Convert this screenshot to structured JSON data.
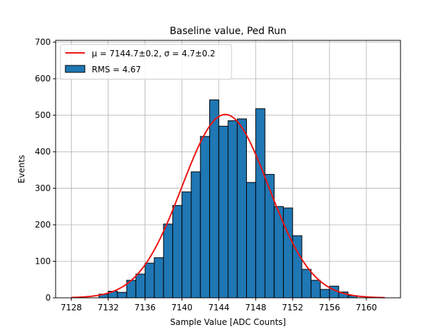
{
  "chart_data": {
    "type": "bar",
    "title": "Baseline value, Ped Run",
    "xlabel": "Sample Value [ADC Counts]",
    "ylabel": "Events",
    "xlim": [
      7126.3,
      7163.7
    ],
    "ylim": [
      0,
      705
    ],
    "xticks": [
      7128,
      7132,
      7136,
      7140,
      7144,
      7148,
      7152,
      7156,
      7160
    ],
    "yticks": [
      0,
      100,
      200,
      300,
      400,
      500,
      600,
      700
    ],
    "grid": true,
    "legend_position": "top-left",
    "bin_width": 1,
    "bins": [
      {
        "x0": 7131,
        "value": 10
      },
      {
        "x0": 7132,
        "value": 18
      },
      {
        "x0": 7133,
        "value": 15
      },
      {
        "x0": 7134,
        "value": 48
      },
      {
        "x0": 7135,
        "value": 65
      },
      {
        "x0": 7136,
        "value": 95
      },
      {
        "x0": 7137,
        "value": 110
      },
      {
        "x0": 7138,
        "value": 202
      },
      {
        "x0": 7139,
        "value": 253
      },
      {
        "x0": 7140,
        "value": 290
      },
      {
        "x0": 7141,
        "value": 345
      },
      {
        "x0": 7142,
        "value": 442
      },
      {
        "x0": 7143,
        "value": 542
      },
      {
        "x0": 7144,
        "value": 470
      },
      {
        "x0": 7145,
        "value": 485
      },
      {
        "x0": 7146,
        "value": 490
      },
      {
        "x0": 7147,
        "value": 316
      },
      {
        "x0": 7148,
        "value": 518
      },
      {
        "x0": 7149,
        "value": 338
      },
      {
        "x0": 7150,
        "value": 250
      },
      {
        "x0": 7151,
        "value": 246
      },
      {
        "x0": 7152,
        "value": 170
      },
      {
        "x0": 7153,
        "value": 78
      },
      {
        "x0": 7154,
        "value": 48
      },
      {
        "x0": 7155,
        "value": 23
      },
      {
        "x0": 7156,
        "value": 32
      },
      {
        "x0": 7157,
        "value": 16
      },
      {
        "x0": 7158,
        "value": 6
      }
    ],
    "fit": {
      "type": "gaussian",
      "mu": 7144.7,
      "sigma": 4.7,
      "amplitude": 502,
      "x_range": [
        7128,
        7162
      ]
    },
    "colors": {
      "bar_fill": "#1f77b4",
      "bar_edge": "#000000",
      "fit_line": "#ee1111",
      "grid": "#b0b0b0"
    },
    "legend": [
      {
        "label": "μ = 7144.7±0.2, σ = 4.7±0.2",
        "style": "line"
      },
      {
        "label": "RMS = 4.67",
        "style": "patch"
      }
    ]
  }
}
